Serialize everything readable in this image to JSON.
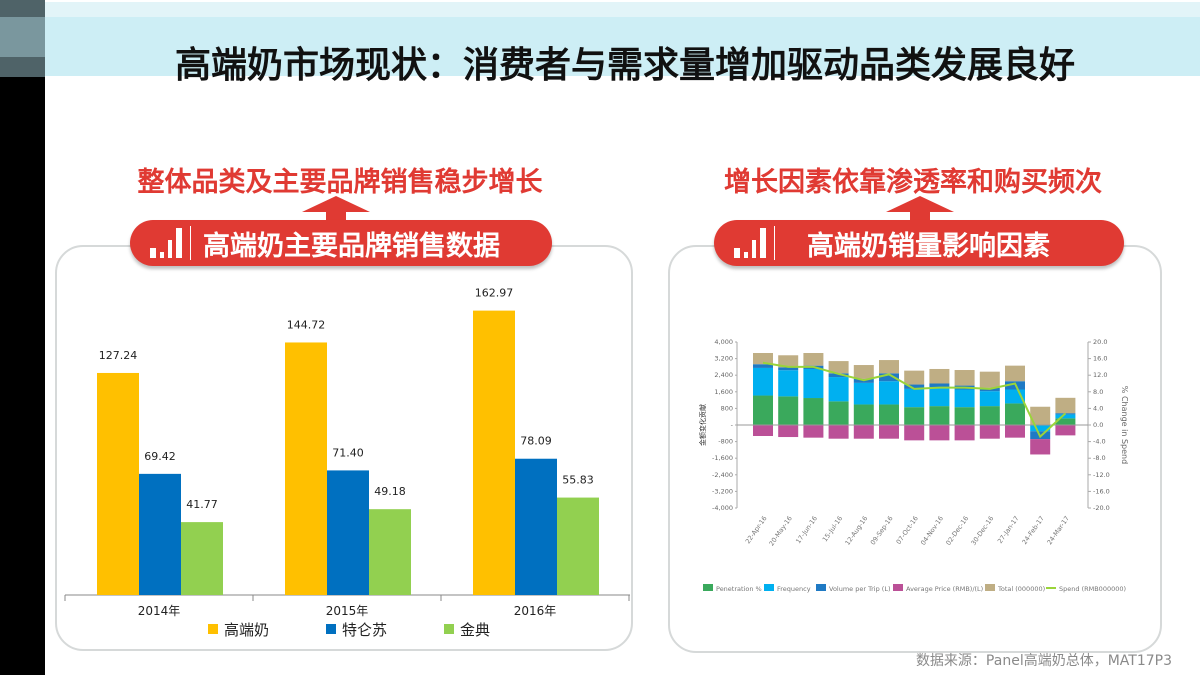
{
  "title": "高端奶市场现状：消费者与需求量增加驱动品类发展良好",
  "left": {
    "headline": "整体品类及主要品牌销售稳步增长",
    "pill": "高端奶主要品牌销售数据",
    "icon": "bar-chart-icon"
  },
  "right": {
    "headline": "增长因素依靠渗透率和购买频次",
    "pill": "高端奶销量影响因素",
    "icon": "bar-chart-icon"
  },
  "source": "数据来源：Panel高端奶总体，MAT17P3",
  "colors": {
    "accent": "#e03a33",
    "gaoduan": "#ffc000",
    "tecang": "#0070c0",
    "jindian": "#92d050"
  },
  "chart_data": [
    {
      "type": "bar",
      "categories": [
        "2014年",
        "2015年",
        "2016年"
      ],
      "series": [
        {
          "name": "高端奶",
          "color": "#ffc000",
          "values": [
            127.24,
            144.72,
            162.97
          ]
        },
        {
          "name": "特仑苏",
          "color": "#0070c0",
          "values": [
            69.42,
            71.4,
            78.09
          ]
        },
        {
          "name": "金典",
          "color": "#92d050",
          "values": [
            41.77,
            49.18,
            55.83
          ]
        }
      ],
      "value_labels": [
        [
          "127.24",
          "144.72",
          "162.97"
        ],
        [
          "69.42",
          "71.40",
          "78.09"
        ],
        [
          "41.77",
          "49.18",
          "55.83"
        ]
      ],
      "legend": "bottom",
      "grid": false
    },
    {
      "type": "bar",
      "stacked": true,
      "categories": [
        "22-Apr-16",
        "20-May-16",
        "17-Jun-16",
        "15-Jul-16",
        "12-Aug-16",
        "09-Sep-16",
        "07-Oct-16",
        "04-Nov-16",
        "02-Dec-16",
        "30-Dec-16",
        "27-Jan-17",
        "24-Feb-17",
        "24-Mar-17"
      ],
      "ylabel": "金额变化贡献",
      "y2label": "% Change in Spend",
      "ylim": [
        -4000,
        4000
      ],
      "yticks": [
        "4,000",
        "3,200",
        "2,400",
        "1,600",
        "800",
        "-",
        "-800",
        "-1,600",
        "-2,400",
        "-3,200",
        "-4,000"
      ],
      "y2lim": [
        -20,
        20
      ],
      "y2ticks": [
        "20.0",
        "16.0",
        "12.0",
        "8.0",
        "4.0",
        "0.0",
        "-4.0",
        "-8.0",
        "-12.0",
        "-16.0",
        "-20.0"
      ],
      "series": [
        {
          "name": "Penetration %",
          "color": "#3aa95c",
          "values": [
            1420,
            1380,
            1300,
            1140,
            990,
            990,
            860,
            910,
            860,
            910,
            1040,
            0,
            320
          ]
        },
        {
          "name": "Frequency",
          "color": "#00b0f0",
          "values": [
            1330,
            1260,
            1400,
            1170,
            1040,
            1120,
            880,
            910,
            850,
            720,
            670,
            -300,
            190
          ]
        },
        {
          "name": "Volume per Trip (L)",
          "color": "#1f7ac4",
          "values": [
            180,
            140,
            160,
            180,
            190,
            380,
            210,
            180,
            190,
            160,
            400,
            -380,
            60
          ]
        },
        {
          "name": "Average Price (RMB)/(L)",
          "color": "#bb5097",
          "values": [
            -530,
            -580,
            -610,
            -660,
            -660,
            -660,
            -740,
            -740,
            -740,
            -660,
            -610,
            -740,
            -500
          ]
        },
        {
          "name": "Total (000000)",
          "color": "#bfae84",
          "values": [
            540,
            580,
            610,
            590,
            670,
            640,
            670,
            700,
            750,
            780,
            750,
            880,
            740
          ]
        }
      ],
      "line": {
        "name": "Spend (RMB000000)",
        "color": "#9ad43a",
        "axis": "right",
        "values": [
          15.0,
          14.0,
          14.0,
          12.3,
          10.8,
          12.2,
          8.7,
          9.0,
          9.0,
          8.7,
          10.0,
          -2.8,
          2.8
        ]
      },
      "legend": "bottom",
      "grid": false
    }
  ]
}
